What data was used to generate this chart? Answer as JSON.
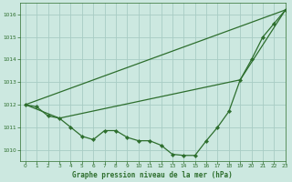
{
  "xlabel": "Graphe pression niveau de la mer (hPa)",
  "xlim": [
    -0.5,
    23
  ],
  "ylim": [
    1009.5,
    1016.5
  ],
  "yticks": [
    1010,
    1011,
    1012,
    1013,
    1014,
    1015,
    1016
  ],
  "xticks": [
    0,
    1,
    2,
    3,
    4,
    5,
    6,
    7,
    8,
    9,
    10,
    11,
    12,
    13,
    14,
    15,
    16,
    17,
    18,
    19,
    20,
    21,
    22,
    23
  ],
  "bg_color": "#cce8e0",
  "line_color": "#2d6e2d",
  "grid_color": "#a8ccc4",
  "series1_x": [
    0,
    1,
    2,
    3,
    4,
    5,
    6,
    7,
    8,
    9,
    10,
    11,
    12,
    13,
    14,
    15,
    16,
    17,
    18,
    19,
    20,
    21,
    22,
    23
  ],
  "series1_y": [
    1012.0,
    1011.9,
    1011.5,
    1011.4,
    1011.0,
    1010.6,
    1010.45,
    1010.85,
    1010.85,
    1010.55,
    1010.4,
    1010.4,
    1010.2,
    1009.8,
    1009.75,
    1009.75,
    1010.4,
    1011.0,
    1011.7,
    1013.1,
    1014.0,
    1015.0,
    1015.6,
    1016.2
  ],
  "series2_x": [
    0,
    23
  ],
  "series2_y": [
    1012.0,
    1016.2
  ],
  "series3_x": [
    0,
    3,
    19,
    23
  ],
  "series3_y": [
    1012.0,
    1011.4,
    1013.1,
    1016.2
  ],
  "font_color": "#2d6e2d"
}
